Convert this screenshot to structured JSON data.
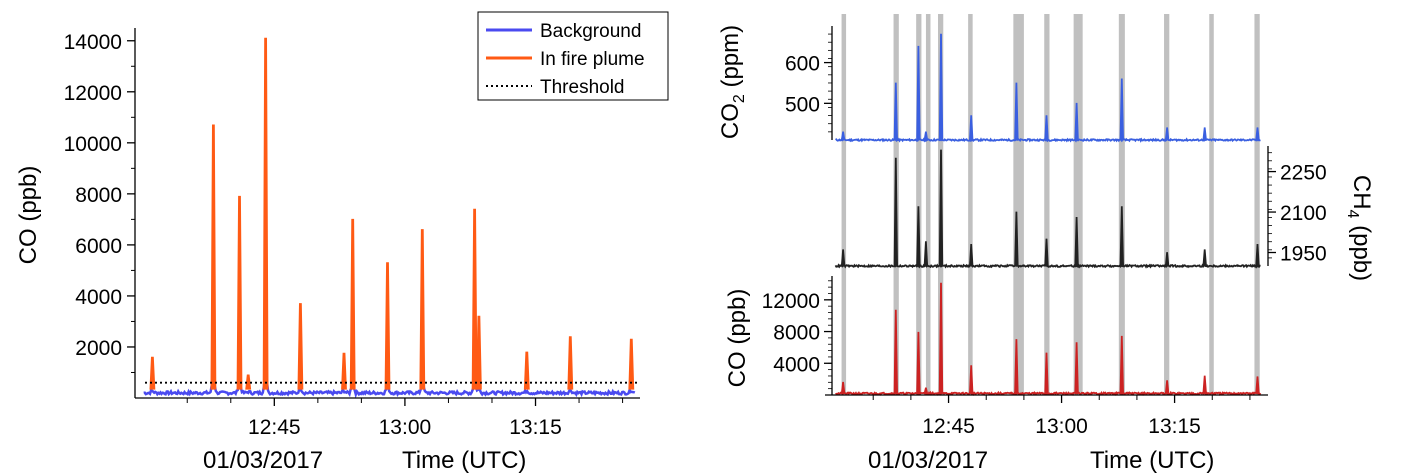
{
  "chart_data": [
    {
      "type": "line",
      "ylabel": "CO (ppb)",
      "xlabel": "Time (UTC)",
      "date_label": "01/03/2017",
      "x_ticks": [
        "12:45",
        "13:00",
        "13:15"
      ],
      "x_range": [
        "12:29",
        "13:27"
      ],
      "y_ticks": [
        2000,
        4000,
        6000,
        8000,
        10000,
        12000,
        14000
      ],
      "ylim": [
        0,
        14500
      ],
      "threshold": 600,
      "legend": [
        {
          "label": "Background",
          "color": "#4a4af0",
          "style": "solid"
        },
        {
          "label": "In fire plume",
          "color": "#ff5a14",
          "style": "solid"
        },
        {
          "label": "Threshold",
          "color": "#000000",
          "style": "dotted"
        }
      ],
      "legend_position": "top-right",
      "background_level": 200,
      "plume_peaks": [
        {
          "time": "12:31",
          "value": 1600
        },
        {
          "time": "12:38",
          "value": 10700
        },
        {
          "time": "12:41",
          "value": 7900
        },
        {
          "time": "12:42",
          "value": 900
        },
        {
          "time": "12:44",
          "value": 14100
        },
        {
          "time": "12:48",
          "value": 3700
        },
        {
          "time": "12:53",
          "value": 1750
        },
        {
          "time": "12:54",
          "value": 7000
        },
        {
          "time": "12:58",
          "value": 5300
        },
        {
          "time": "13:02",
          "value": 6600
        },
        {
          "time": "13:08",
          "value": 7400
        },
        {
          "time": "13:08.5",
          "value": 3200
        },
        {
          "time": "13:14",
          "value": 1800
        },
        {
          "time": "13:19",
          "value": 2400
        },
        {
          "time": "13:26",
          "value": 2300
        }
      ]
    },
    {
      "type": "line",
      "panels": [
        {
          "name": "CO2",
          "ylabel_main": "CO",
          "ylabel_sub": "2",
          "ylabel_unit": "(ppm)",
          "color": "#3a5fe0",
          "y_ticks": [
            500,
            600
          ],
          "ylim": [
            410,
            680
          ],
          "baseline": 410,
          "peaks": [
            {
              "time": "12:31",
              "value": 430
            },
            {
              "time": "12:38",
              "value": 550
            },
            {
              "time": "12:41",
              "value": 640
            },
            {
              "time": "12:42",
              "value": 430
            },
            {
              "time": "12:44",
              "value": 670
            },
            {
              "time": "12:48",
              "value": 470
            },
            {
              "time": "12:54",
              "value": 550
            },
            {
              "time": "12:58",
              "value": 470
            },
            {
              "time": "13:02",
              "value": 500
            },
            {
              "time": "13:08",
              "value": 560
            },
            {
              "time": "13:14",
              "value": 440
            },
            {
              "time": "13:19",
              "value": 440
            },
            {
              "time": "13:26",
              "value": 440
            }
          ]
        },
        {
          "name": "CH4",
          "ylabel_main": "CH",
          "ylabel_sub": "4",
          "ylabel_unit": "(ppb)",
          "color": "#222222",
          "y_ticks": [
            1950,
            2100,
            2250
          ],
          "ylim": [
            1900,
            2330
          ],
          "baseline": 1900,
          "peaks": [
            {
              "time": "12:31",
              "value": 1960
            },
            {
              "time": "12:38",
              "value": 2300
            },
            {
              "time": "12:41",
              "value": 2120
            },
            {
              "time": "12:42",
              "value": 1990
            },
            {
              "time": "12:44",
              "value": 2330
            },
            {
              "time": "12:48",
              "value": 1980
            },
            {
              "time": "12:54",
              "value": 2100
            },
            {
              "time": "12:58",
              "value": 2000
            },
            {
              "time": "13:02",
              "value": 2080
            },
            {
              "time": "13:08",
              "value": 2120
            },
            {
              "time": "13:14",
              "value": 1950
            },
            {
              "time": "13:19",
              "value": 1960
            },
            {
              "time": "13:26",
              "value": 1980
            }
          ]
        },
        {
          "name": "CO",
          "ylabel_main": "CO",
          "ylabel_sub": "",
          "ylabel_unit": "(ppb)",
          "color": "#cc2222",
          "y_ticks": [
            4000,
            8000,
            12000
          ],
          "ylim": [
            0,
            14500
          ],
          "baseline": 200,
          "peaks": [
            {
              "time": "12:31",
              "value": 1600
            },
            {
              "time": "12:38",
              "value": 10700
            },
            {
              "time": "12:41",
              "value": 7900
            },
            {
              "time": "12:42",
              "value": 900
            },
            {
              "time": "12:44",
              "value": 14100
            },
            {
              "time": "12:48",
              "value": 3700
            },
            {
              "time": "12:54",
              "value": 7000
            },
            {
              "time": "12:58",
              "value": 5300
            },
            {
              "time": "13:02",
              "value": 6600
            },
            {
              "time": "13:08",
              "value": 7400
            },
            {
              "time": "13:14",
              "value": 1800
            },
            {
              "time": "13:19",
              "value": 2400
            },
            {
              "time": "13:26",
              "value": 2300
            }
          ]
        }
      ],
      "xlabel": "Time (UTC)",
      "date_label": "01/03/2017",
      "x_ticks": [
        "12:45",
        "13:00",
        "13:15"
      ],
      "x_range": [
        "12:29",
        "13:27"
      ],
      "shaded_time_bands": [
        [
          "12:30.8",
          "12:31.4"
        ],
        [
          "12:37.7",
          "12:38.4"
        ],
        [
          "12:40.7",
          "12:41.4"
        ],
        [
          "12:42.0",
          "12:42.6"
        ],
        [
          "12:43.6",
          "12:44.3"
        ],
        [
          "12:47.6",
          "12:48.2"
        ],
        [
          "12:53.6",
          "12:55.0"
        ],
        [
          "12:57.7",
          "12:58.4"
        ],
        [
          "13:01.6",
          "13:02.8"
        ],
        [
          "13:07.6",
          "13:08.4"
        ],
        [
          "13:13.6",
          "13:14.3"
        ],
        [
          "13:19.6",
          "13:20.2"
        ],
        [
          "13:25.6",
          "13:26.3"
        ]
      ]
    }
  ]
}
